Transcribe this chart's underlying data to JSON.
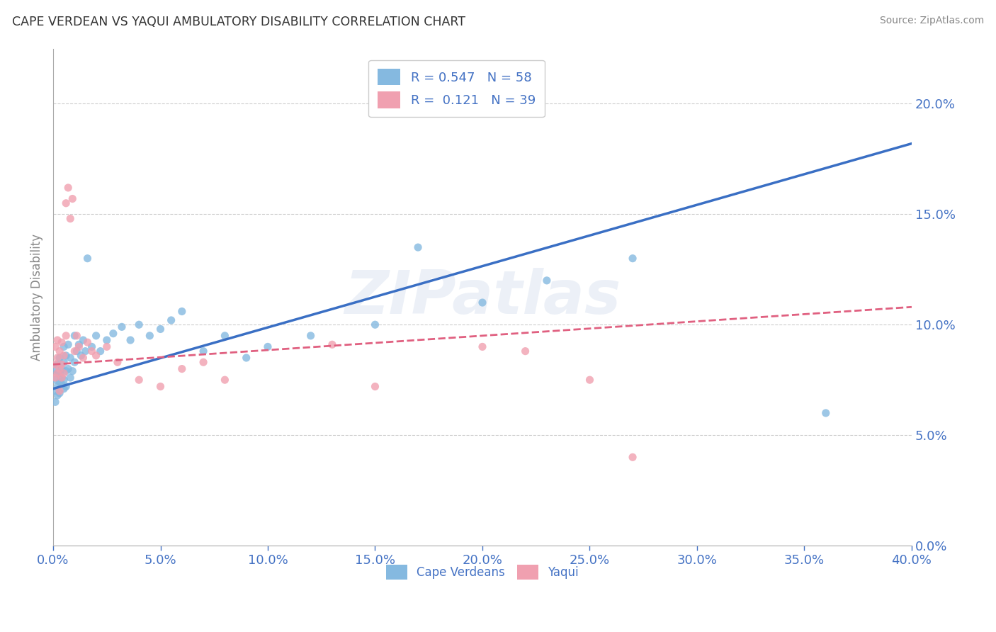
{
  "title": "CAPE VERDEAN VS YAQUI AMBULATORY DISABILITY CORRELATION CHART",
  "source": "Source: ZipAtlas.com",
  "ylabel": "Ambulatory Disability",
  "xlim": [
    0.0,
    0.4
  ],
  "ylim": [
    0.0,
    0.225
  ],
  "x_ticks": [
    0.0,
    0.05,
    0.1,
    0.15,
    0.2,
    0.25,
    0.3,
    0.35,
    0.4
  ],
  "y_ticks": [
    0.0,
    0.05,
    0.1,
    0.15,
    0.2
  ],
  "blue_scatter_color": "#85b9e0",
  "blue_line_color": "#3a6fc4",
  "pink_scatter_color": "#f0a0b0",
  "pink_line_color": "#e06080",
  "watermark": "ZIPatlas",
  "legend_blue_label": "R = 0.547   N = 58",
  "legend_pink_label": "R =  0.121   N = 39",
  "bottom_legend_blue": "Cape Verdeans",
  "bottom_legend_pink": "Yaqui",
  "blue_line_x0": 0.0,
  "blue_line_y0": 0.071,
  "blue_line_x1": 0.4,
  "blue_line_y1": 0.182,
  "pink_line_x0": 0.0,
  "pink_line_y0": 0.082,
  "pink_line_x1": 0.4,
  "pink_line_y1": 0.108,
  "blue_scatter_x": [
    0.001,
    0.001,
    0.001,
    0.001,
    0.002,
    0.002,
    0.002,
    0.002,
    0.003,
    0.003,
    0.003,
    0.003,
    0.004,
    0.004,
    0.004,
    0.005,
    0.005,
    0.005,
    0.005,
    0.006,
    0.006,
    0.006,
    0.007,
    0.007,
    0.008,
    0.008,
    0.009,
    0.01,
    0.01,
    0.011,
    0.012,
    0.013,
    0.014,
    0.015,
    0.016,
    0.018,
    0.02,
    0.022,
    0.025,
    0.028,
    0.032,
    0.036,
    0.04,
    0.045,
    0.05,
    0.055,
    0.06,
    0.07,
    0.08,
    0.09,
    0.1,
    0.12,
    0.15,
    0.17,
    0.2,
    0.23,
    0.27,
    0.36
  ],
  "blue_scatter_y": [
    0.07,
    0.075,
    0.065,
    0.08,
    0.072,
    0.068,
    0.078,
    0.082,
    0.069,
    0.074,
    0.085,
    0.078,
    0.073,
    0.08,
    0.076,
    0.071,
    0.083,
    0.09,
    0.075,
    0.079,
    0.086,
    0.072,
    0.08,
    0.091,
    0.076,
    0.085,
    0.079,
    0.083,
    0.095,
    0.088,
    0.091,
    0.086,
    0.093,
    0.088,
    0.13,
    0.09,
    0.095,
    0.088,
    0.093,
    0.096,
    0.099,
    0.093,
    0.1,
    0.095,
    0.098,
    0.102,
    0.106,
    0.088,
    0.095,
    0.085,
    0.09,
    0.095,
    0.1,
    0.135,
    0.11,
    0.12,
    0.13,
    0.06
  ],
  "pink_scatter_x": [
    0.001,
    0.001,
    0.001,
    0.002,
    0.002,
    0.002,
    0.003,
    0.003,
    0.003,
    0.004,
    0.004,
    0.004,
    0.005,
    0.005,
    0.006,
    0.006,
    0.007,
    0.008,
    0.009,
    0.01,
    0.011,
    0.012,
    0.014,
    0.016,
    0.018,
    0.02,
    0.025,
    0.03,
    0.04,
    0.05,
    0.06,
    0.07,
    0.08,
    0.13,
    0.15,
    0.2,
    0.22,
    0.25,
    0.27
  ],
  "pink_scatter_y": [
    0.082,
    0.076,
    0.09,
    0.078,
    0.085,
    0.093,
    0.08,
    0.07,
    0.088,
    0.082,
    0.076,
    0.092,
    0.086,
    0.078,
    0.095,
    0.155,
    0.162,
    0.148,
    0.157,
    0.088,
    0.095,
    0.09,
    0.085,
    0.092,
    0.088,
    0.086,
    0.09,
    0.083,
    0.075,
    0.072,
    0.08,
    0.083,
    0.075,
    0.091,
    0.072,
    0.09,
    0.088,
    0.075,
    0.04
  ]
}
